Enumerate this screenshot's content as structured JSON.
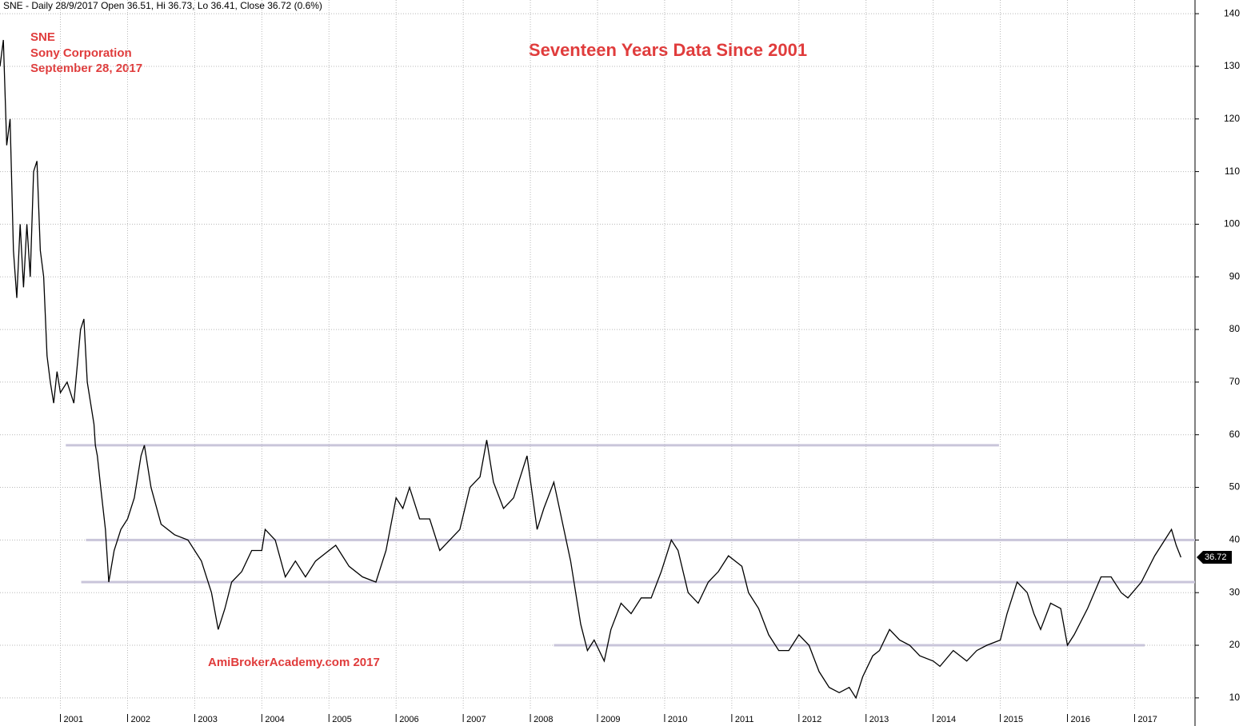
{
  "chart_data": {
    "type": "line",
    "header": "SNE - Daily 28/9/2017 Open 36.51, Hi 36.73, Lo 36.41, Close 36.72 (0.6%)",
    "title": "Seventeen Years Data Since 2001",
    "annotations": [
      "SNE",
      "Sony Corporation",
      "September 28, 2017"
    ],
    "watermark": "AmiBrokerAcademy.com  2017",
    "xlim": [
      2000.1,
      2017.9
    ],
    "ylim": [
      7.7,
      142.6
    ],
    "xticks": [
      2001,
      2002,
      2003,
      2004,
      2005,
      2006,
      2007,
      2008,
      2009,
      2010,
      2011,
      2012,
      2013,
      2014,
      2015,
      2016,
      2017
    ],
    "yticks": [
      10,
      20,
      30,
      40,
      50,
      60,
      70,
      80,
      90,
      100,
      110,
      120,
      130,
      140
    ],
    "grid": true,
    "levels": [
      {
        "value": 58,
        "x": [
          2001.08,
          2014.98
        ]
      },
      {
        "value": 40,
        "x": [
          2001.38,
          2017.9
        ]
      },
      {
        "value": 32,
        "x": [
          2001.31,
          2017.9
        ]
      },
      {
        "value": 20,
        "x": [
          2008.35,
          2017.15
        ]
      }
    ],
    "level_color": "#c9c5da",
    "series": [
      {
        "name": "SNE",
        "color": "#000000",
        "x": [
          2000.1,
          2000.15,
          2000.2,
          2000.25,
          2000.3,
          2000.35,
          2000.4,
          2000.45,
          2000.5,
          2000.55,
          2000.6,
          2000.65,
          2000.7,
          2000.75,
          2000.8,
          2000.85,
          2000.9,
          2000.95,
          2001.0,
          2001.1,
          2001.2,
          2001.3,
          2001.35,
          2001.4,
          2001.5,
          2001.52,
          2001.55,
          2001.6,
          2001.67,
          2001.72,
          2001.8,
          2001.9,
          2002.0,
          2002.1,
          2002.2,
          2002.25,
          2002.35,
          2002.5,
          2002.7,
          2002.9,
          2003.1,
          2003.25,
          2003.35,
          2003.45,
          2003.55,
          2003.7,
          2003.85,
          2004.0,
          2004.05,
          2004.2,
          2004.35,
          2004.5,
          2004.65,
          2004.8,
          2005.0,
          2005.1,
          2005.3,
          2005.5,
          2005.7,
          2005.85,
          2006.0,
          2006.1,
          2006.2,
          2006.35,
          2006.5,
          2006.65,
          2006.8,
          2006.95,
          2007.1,
          2007.25,
          2007.35,
          2007.45,
          2007.6,
          2007.75,
          2007.9,
          2007.95,
          2008.1,
          2008.2,
          2008.35,
          2008.45,
          2008.6,
          2008.75,
          2008.85,
          2008.95,
          2009.1,
          2009.2,
          2009.35,
          2009.5,
          2009.65,
          2009.8,
          2009.95,
          2010.1,
          2010.2,
          2010.35,
          2010.5,
          2010.65,
          2010.8,
          2010.95,
          2011.15,
          2011.25,
          2011.4,
          2011.55,
          2011.7,
          2011.85,
          2012.0,
          2012.15,
          2012.3,
          2012.45,
          2012.6,
          2012.75,
          2012.85,
          2012.95,
          2013.1,
          2013.2,
          2013.35,
          2013.5,
          2013.65,
          2013.8,
          2014.0,
          2014.1,
          2014.3,
          2014.5,
          2014.65,
          2014.8,
          2015.0,
          2015.1,
          2015.25,
          2015.4,
          2015.5,
          2015.6,
          2015.75,
          2015.9,
          2016.0,
          2016.1,
          2016.3,
          2016.5,
          2016.65,
          2016.8,
          2016.9,
          2017.1,
          2017.3,
          2017.45,
          2017.55,
          2017.62,
          2017.69
        ],
        "values": [
          130,
          135,
          115,
          120,
          95,
          86,
          100,
          88,
          100,
          90,
          110,
          112,
          95,
          90,
          75,
          70,
          66,
          72,
          68,
          70,
          66,
          80,
          82,
          70,
          62,
          58,
          56,
          50,
          42,
          32,
          38,
          42,
          44,
          48,
          56,
          58,
          50,
          43,
          41,
          40,
          36,
          30,
          23,
          27,
          32,
          34,
          38,
          38,
          42,
          40,
          33,
          36,
          33,
          36,
          38,
          39,
          35,
          33,
          32,
          38,
          48,
          46,
          50,
          44,
          44,
          38,
          40,
          42,
          50,
          52,
          59,
          51,
          46,
          48,
          54,
          56,
          42,
          46,
          51,
          45,
          36,
          24,
          19,
          21,
          17,
          23,
          28,
          26,
          29,
          29,
          34,
          40,
          38,
          30,
          28,
          32,
          34,
          37,
          35,
          30,
          27,
          22,
          19,
          19,
          22,
          20,
          15,
          12,
          11,
          12,
          10,
          14,
          18,
          19,
          23,
          21,
          20,
          18,
          17,
          16,
          19,
          17,
          19,
          20,
          21,
          26,
          32,
          30,
          26,
          23,
          28,
          27,
          20,
          22,
          27,
          33,
          33,
          30,
          29,
          32,
          37,
          40,
          42,
          39,
          36.72
        ]
      }
    ]
  }
}
